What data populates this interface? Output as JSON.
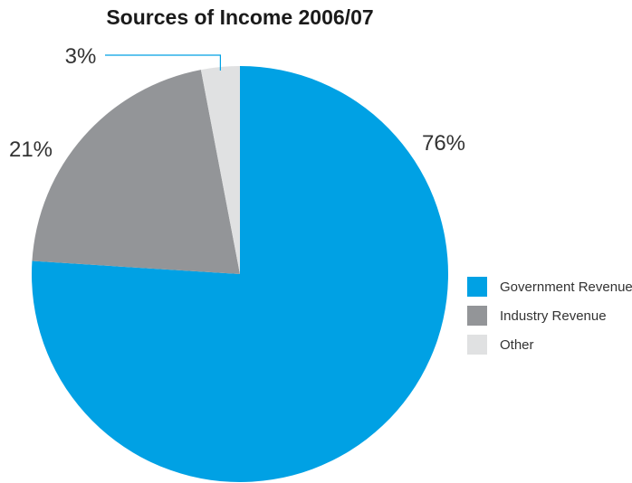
{
  "chart_data": {
    "type": "pie",
    "title": "Sources of Income 2006/07",
    "slices": [
      {
        "label": "Government Revenue",
        "value": 76,
        "value_label": "76%",
        "color": "#00a1e4"
      },
      {
        "label": "Industry Revenue",
        "value": 21,
        "value_label": "21%",
        "color": "#939598"
      },
      {
        "label": "Other",
        "value": 3,
        "value_label": "3%",
        "color": "#e0e1e2"
      }
    ],
    "start_angle": "12 o'clock",
    "direction": "clockwise",
    "legend_position": "right"
  }
}
